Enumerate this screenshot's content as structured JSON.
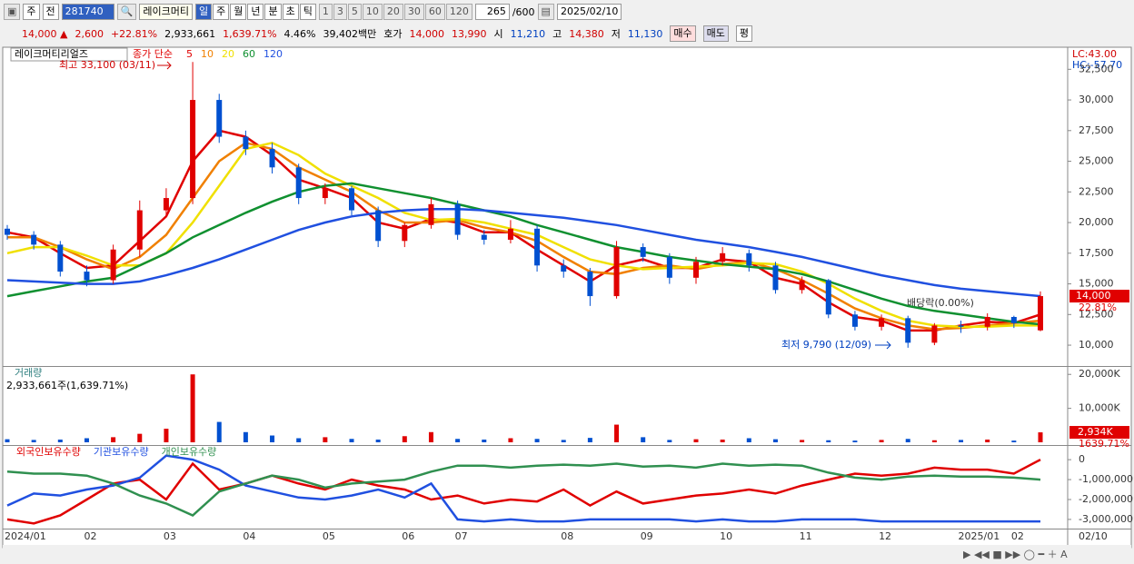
{
  "toolbar": {
    "market": "주",
    "prev": "전",
    "code": "281740",
    "name": "레이크머티",
    "periods": [
      "일",
      "주",
      "월",
      "년",
      "분",
      "초",
      "틱"
    ],
    "intervals": [
      "1",
      "3",
      "5",
      "10",
      "20",
      "30",
      "60",
      "120"
    ],
    "count": "265",
    "max": "/600",
    "date": "2025/02/10"
  },
  "quote": {
    "price": "14,000 ▲",
    "change": "2,600",
    "rate": "+22.81%",
    "volume": "2,933,661",
    "volume_rate": "1,639.71%",
    "turnover": "4.46%",
    "amount": "39,402백만",
    "ask_label": "호가",
    "ask": "14,000",
    "bid": "13,990",
    "open_label": "시",
    "open": "11,210",
    "high_label": "고",
    "high": "14,380",
    "low_label": "저",
    "low": "11,130",
    "buy": "매수",
    "sell": "매도",
    "avg": "평"
  },
  "chart_data": [
    {
      "type": "candlestick",
      "title": "레이크머티리얼즈",
      "ma_label": "종가 단순",
      "categories": [
        "2024/01",
        null,
        null,
        "02",
        null,
        null,
        "03",
        null,
        null,
        "04",
        null,
        null,
        "05",
        null,
        null,
        "06",
        null,
        "07",
        null,
        null,
        null,
        "08",
        null,
        null,
        "09",
        null,
        null,
        "10",
        null,
        null,
        "11",
        null,
        null,
        "12",
        null,
        null,
        "2025/01",
        null,
        "02",
        null
      ],
      "x_end_label": "02/10",
      "open": [
        19500,
        19000,
        18200,
        16000,
        15300,
        17800,
        21000,
        22000,
        30000,
        27000,
        26000,
        24500,
        22000,
        22800,
        21000,
        18500,
        19800,
        21500,
        19000,
        18600,
        19500,
        16500,
        16000,
        14000,
        18000,
        17200,
        15500,
        16800,
        17500,
        16500,
        14500,
        15300,
        12500,
        11500,
        12200,
        10200,
        11600,
        11500,
        12300,
        11210
      ],
      "high": [
        19800,
        19300,
        18500,
        16500,
        18200,
        21800,
        22800,
        33100,
        30500,
        27500,
        26500,
        24800,
        23200,
        23000,
        21300,
        20000,
        22000,
        21800,
        19400,
        20200,
        19800,
        17000,
        16300,
        18500,
        18300,
        17500,
        17200,
        18000,
        17800,
        16800,
        15600,
        15400,
        12800,
        12500,
        12400,
        11800,
        12000,
        12600,
        12400,
        14380
      ],
      "low": [
        18600,
        17800,
        15600,
        14800,
        15000,
        17200,
        20500,
        21500,
        26500,
        25500,
        24000,
        21500,
        21500,
        20600,
        18000,
        18000,
        19500,
        18600,
        18200,
        18300,
        16000,
        15500,
        13200,
        13800,
        16800,
        15000,
        15000,
        16500,
        16000,
        14200,
        14200,
        12200,
        11200,
        11200,
        9790,
        10000,
        11000,
        11200,
        11400,
        11130
      ],
      "close": [
        19000,
        18200,
        16000,
        15300,
        17800,
        21000,
        22000,
        30000,
        27000,
        26000,
        24500,
        22000,
        22800,
        21000,
        18500,
        19800,
        21500,
        19000,
        18600,
        19500,
        16500,
        16000,
        14000,
        18000,
        17200,
        15500,
        16800,
        17500,
        16500,
        14500,
        15300,
        12500,
        11500,
        12200,
        10200,
        11600,
        11500,
        12300,
        11800,
        14000
      ],
      "up_color": "#e00000",
      "down_color": "#0050d0",
      "series": [
        {
          "name": "5",
          "color": "#e00000",
          "values": [
            19200,
            18800,
            17500,
            16300,
            16500,
            18500,
            20500,
            25000,
            27500,
            27000,
            25500,
            23500,
            22800,
            22000,
            20000,
            19500,
            20300,
            20000,
            19200,
            19200,
            17800,
            16500,
            15200,
            16500,
            17000,
            16300,
            16300,
            17000,
            16800,
            15500,
            15000,
            13500,
            12300,
            12000,
            11200,
            11200,
            11600,
            11900,
            11800,
            12500
          ]
        },
        {
          "name": "10",
          "color": "#f08000",
          "values": [
            18800,
            18800,
            18000,
            17000,
            16200,
            17200,
            19000,
            22000,
            25000,
            26500,
            26000,
            24500,
            23500,
            22500,
            21000,
            20000,
            20000,
            20200,
            19600,
            19200,
            18500,
            17200,
            16000,
            15800,
            16300,
            16500,
            16200,
            16600,
            16800,
            16200,
            15300,
            14200,
            13000,
            12200,
            11600,
            11300,
            11400,
            11600,
            11800,
            12000
          ]
        },
        {
          "name": "20",
          "color": "#f0e000",
          "values": [
            17500,
            18000,
            18000,
            17300,
            16500,
            16500,
            17500,
            20000,
            23000,
            26000,
            26500,
            25500,
            24000,
            23000,
            22000,
            20800,
            20200,
            20300,
            20000,
            19500,
            19000,
            18000,
            17000,
            16500,
            16200,
            16300,
            16400,
            16500,
            16700,
            16600,
            16000,
            15000,
            13800,
            12800,
            12000,
            11600,
            11500,
            11500,
            11600,
            11600
          ]
        },
        {
          "name": "60",
          "color": "#109030",
          "values": [
            14000,
            14400,
            14800,
            15200,
            15500,
            16500,
            17500,
            18800,
            19800,
            20800,
            21700,
            22500,
            23000,
            23200,
            22800,
            22400,
            22000,
            21500,
            21000,
            20500,
            19800,
            19200,
            18600,
            18000,
            17600,
            17200,
            16900,
            16600,
            16400,
            16200,
            15800,
            15200,
            14500,
            13800,
            13200,
            12800,
            12500,
            12200,
            11900,
            11700
          ]
        },
        {
          "name": "120",
          "color": "#2050e0",
          "values": [
            15300,
            15200,
            15100,
            15000,
            15000,
            15200,
            15700,
            16300,
            17000,
            17800,
            18600,
            19400,
            20000,
            20500,
            20800,
            21000,
            21100,
            21100,
            21000,
            20800,
            20600,
            20400,
            20100,
            19800,
            19400,
            19000,
            18600,
            18300,
            18000,
            17600,
            17200,
            16700,
            16200,
            15700,
            15300,
            14900,
            14600,
            14400,
            14200,
            14000
          ]
        }
      ],
      "ylim": [
        8300,
        34300
      ],
      "yticks": [
        {
          "value": 10000,
          "label": "10,000"
        },
        {
          "value": 12500,
          "label": "12,500"
        },
        {
          "value": 15000,
          "label": "15,000"
        },
        {
          "value": 17500,
          "label": "17,500"
        },
        {
          "value": 20000,
          "label": "20,000"
        },
        {
          "value": 22500,
          "label": "22,500"
        },
        {
          "value": 25000,
          "label": "25,000"
        },
        {
          "value": 27500,
          "label": "27,500"
        },
        {
          "value": 30000,
          "label": "30,000"
        },
        {
          "value": 32500,
          "label": "32,500"
        }
      ],
      "high_note": "최고 33,100 (03/11)",
      "low_note": "최저 9,790 (12/09)",
      "dividend_note": "배당락(0.00%)",
      "last_value_label": "14,000",
      "last_rate": "22.81%",
      "lc": "LC:43.00",
      "hc": "HC:-57.70"
    },
    {
      "type": "bar",
      "title": "거래량",
      "info": "2,933,661주(1,639.71%)",
      "values": [
        900,
        700,
        800,
        1200,
        1500,
        2500,
        4000,
        20000,
        6000,
        3000,
        2000,
        1200,
        1500,
        1000,
        800,
        1800,
        3000,
        1000,
        800,
        1200,
        1000,
        700,
        1300,
        5200,
        1500,
        700,
        900,
        800,
        1200,
        900,
        700,
        600,
        500,
        700,
        1000,
        600,
        700,
        800,
        500,
        2934
      ],
      "ylim": [
        0,
        22200
      ],
      "yticks": [
        {
          "value": 10000,
          "label": "10,000K"
        },
        {
          "value": 20000,
          "label": "20,000K"
        }
      ],
      "last_value_label": "2,934K",
      "last_rate": "1639.71%"
    },
    {
      "type": "line",
      "ylim": [
        -3460000,
        690000
      ],
      "yticks": [
        0,
        {
          "value": -1000000,
          "label": "-1,000,000"
        },
        {
          "value": -2000000,
          "label": "-2,000,000"
        },
        {
          "value": -3000000,
          "label": "-3,000,000"
        }
      ],
      "series": [
        {
          "name": "외국인보유수량",
          "color": "#e00000",
          "values": [
            -3000000,
            -3200000,
            -2800000,
            -2000000,
            -1200000,
            -1000000,
            -2000000,
            -200000,
            -1500000,
            -1200000,
            -800000,
            -1200000,
            -1500000,
            -1000000,
            -1300000,
            -1500000,
            -2000000,
            -1800000,
            -2200000,
            -2000000,
            -2100000,
            -1500000,
            -2300000,
            -1600000,
            -2200000,
            -2000000,
            -1800000,
            -1700000,
            -1500000,
            -1700000,
            -1300000,
            -1000000,
            -700000,
            -800000,
            -700000,
            -400000,
            -500000,
            -500000,
            -700000,
            0
          ]
        },
        {
          "name": "기관보유수량",
          "color": "#2050e0",
          "values": [
            -2300000,
            -1700000,
            -1800000,
            -1500000,
            -1300000,
            -900000,
            200000,
            0,
            -500000,
            -1300000,
            -1600000,
            -1900000,
            -2000000,
            -1800000,
            -1500000,
            -1900000,
            -1200000,
            -3000000,
            -3100000,
            -3000000,
            -3100000,
            -3100000,
            -3000000,
            -3000000,
            -3000000,
            -3000000,
            -3100000,
            -3000000,
            -3100000,
            -3100000,
            -3000000,
            -3000000,
            -3000000,
            -3100000,
            -3100000,
            -3100000,
            -3100000,
            -3100000,
            -3100000,
            -3100000
          ]
        },
        {
          "name": "개인보유수량",
          "color": "#309050",
          "values": [
            -600000,
            -700000,
            -700000,
            -800000,
            -1200000,
            -1800000,
            -2200000,
            -2800000,
            -1600000,
            -1200000,
            -800000,
            -1000000,
            -1400000,
            -1200000,
            -1100000,
            -1000000,
            -600000,
            -300000,
            -300000,
            -400000,
            -300000,
            -250000,
            -300000,
            -200000,
            -350000,
            -300000,
            -400000,
            -200000,
            -300000,
            -250000,
            -300000,
            -650000,
            -900000,
            -1000000,
            -850000,
            -800000,
            -850000,
            -850000,
            -900000,
            -1000000
          ]
        }
      ]
    }
  ]
}
